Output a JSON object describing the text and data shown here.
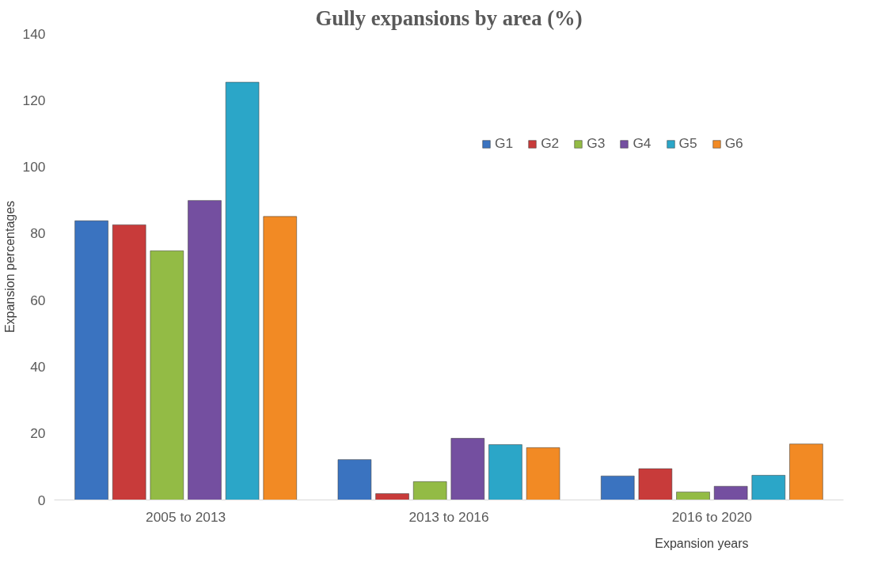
{
  "chart_data": {
    "type": "bar",
    "title": "Gully expansions by area (%)",
    "xlabel": "Expansion years",
    "ylabel": "Expansion percentages",
    "categories": [
      "2005 to 2013",
      "2013 to 2016",
      "2016 to 2020"
    ],
    "series": [
      {
        "name": "G1",
        "color": "#3a73c0",
        "values": [
          83.8,
          12.1,
          7.2
        ]
      },
      {
        "name": "G2",
        "color": "#c83b3a",
        "values": [
          82.6,
          1.9,
          9.4
        ]
      },
      {
        "name": "G3",
        "color": "#93bb45",
        "values": [
          74.8,
          5.5,
          2.4
        ]
      },
      {
        "name": "G4",
        "color": "#744fa0",
        "values": [
          89.9,
          18.5,
          4.1
        ]
      },
      {
        "name": "G5",
        "color": "#2ba6c8",
        "values": [
          125.4,
          16.6,
          7.4
        ]
      },
      {
        "name": "G6",
        "color": "#f28a24",
        "values": [
          85.1,
          15.7,
          16.8
        ]
      }
    ],
    "ylim": [
      0,
      140
    ],
    "yticks": [
      0,
      20,
      40,
      60,
      80,
      100,
      120,
      140
    ],
    "grid": false,
    "legend": "right"
  }
}
